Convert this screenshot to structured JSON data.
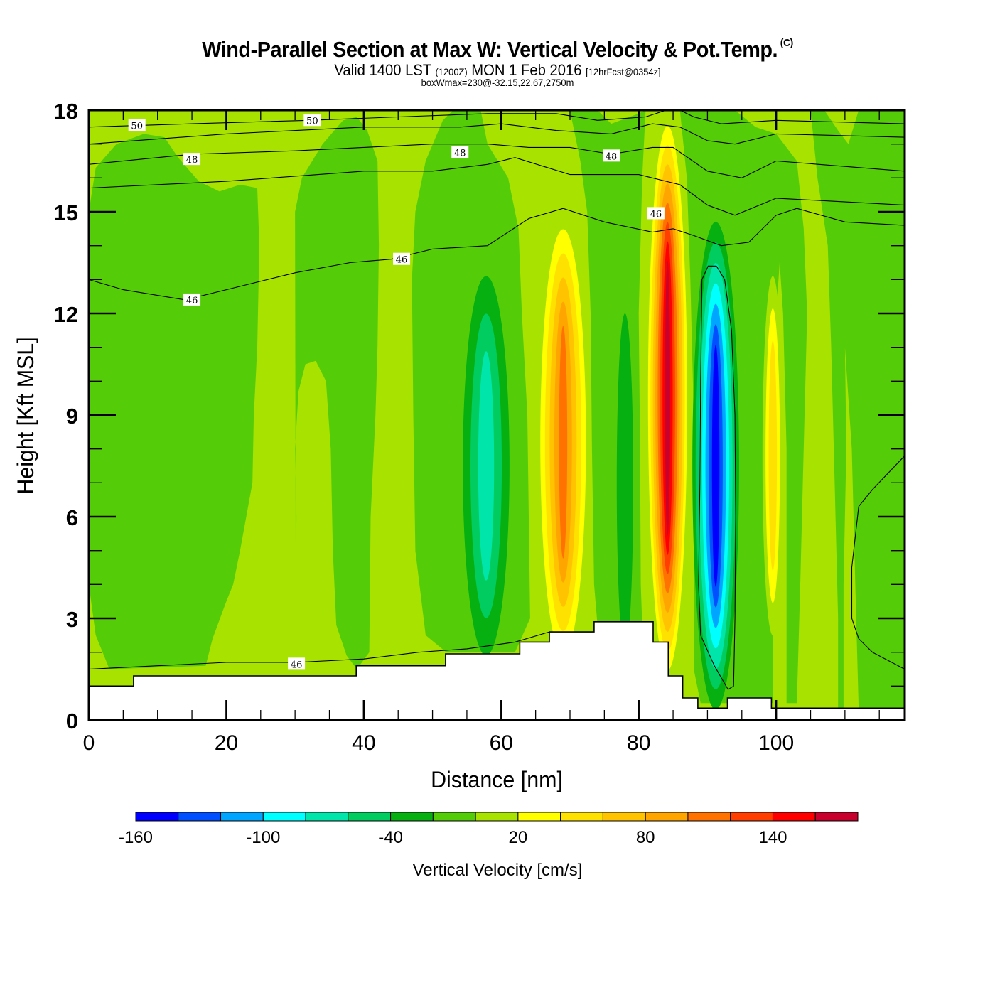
{
  "title": {
    "main": "Wind-Parallel Section at Max W: Vertical Velocity & Pot.Temp.",
    "copyright": "(C)",
    "valid_prefix": "Valid 1400 LST",
    "valid_utc": "(1200Z)",
    "valid_date": "MON 1 Feb 2016",
    "forecast": "[12hrFcst@0354z]",
    "box": "boxWmax=230@-32.15,22.67,2750m"
  },
  "chart_data": {
    "type": "heatmap",
    "subtype": "filled-contour cross-section with line contours",
    "xlabel": "Distance [nm]",
    "ylabel": "Height [Kft MSL]",
    "xlim": [
      0,
      118.7
    ],
    "ylim": [
      0,
      18
    ],
    "xticks": [
      0,
      20,
      40,
      60,
      80,
      100
    ],
    "xtick_labels": [
      "0",
      "20",
      "40",
      "60",
      "80",
      "100"
    ],
    "yticks": [
      0,
      3,
      6,
      9,
      12,
      15,
      18
    ],
    "ytick_labels": [
      "0",
      "3",
      "6",
      "9",
      "12",
      "15",
      "18"
    ],
    "colorbar": {
      "label": "Vertical Velocity [cm/s]",
      "levels": [
        -160,
        -140,
        -120,
        -100,
        -80,
        -60,
        -40,
        -20,
        0,
        20,
        40,
        60,
        80,
        100,
        120,
        140,
        160,
        180
      ],
      "tick_values": [
        -160,
        -100,
        -40,
        20,
        80,
        140
      ],
      "tick_labels": [
        "-160",
        "-100",
        "-40",
        "20",
        "80",
        "140"
      ],
      "colors": [
        "#0000ff",
        "#0050ff",
        "#00a5ff",
        "#00ffff",
        "#00e6aa",
        "#00cc5f",
        "#05b010",
        "#55cc08",
        "#a8e200",
        "#ffff00",
        "#ffe100",
        "#ffc300",
        "#ffa500",
        "#ff7200",
        "#ff3e00",
        "#ff0000",
        "#c8002d"
      ]
    },
    "background_level_color": "#55cc08",
    "w_features": [
      {
        "name": "updraft-weak-left",
        "x_center": 8,
        "x_halfwidth": 8,
        "y_range": [
          1.5,
          15
        ],
        "band_color": "#55cc08"
      },
      {
        "name": "downdraft-58",
        "x_center": 58,
        "y_center": 7,
        "peak_cmps": -60,
        "peak_color": "#00e6aa"
      },
      {
        "name": "updraft-69",
        "x_center": 69,
        "y_center": 8,
        "peak_cmps": 100,
        "peak_color": "#ff7200"
      },
      {
        "name": "downdraft-78",
        "x_center": 78,
        "y_center": 7,
        "peak_cmps": -20,
        "peak_color": "#05b010"
      },
      {
        "name": "updraft-84",
        "x_center": 84,
        "y_center": 10,
        "peak_cmps": 160,
        "peak_color": "#c8002d"
      },
      {
        "name": "downdraft-91",
        "x_center": 91,
        "y_center": 8.5,
        "peak_cmps": -160,
        "peak_color": "#0000ff"
      },
      {
        "name": "updraft-99",
        "x_center": 99,
        "y_center": 8,
        "peak_cmps": 40,
        "peak_color": "#ffe100"
      }
    ],
    "theta_contours": [
      {
        "value": 46,
        "label": "46",
        "points": [
          [
            0,
            1.5
          ],
          [
            10,
            1.6
          ],
          [
            20,
            1.7
          ],
          [
            30,
            1.7
          ],
          [
            40,
            1.8
          ],
          [
            48,
            2.0
          ],
          [
            55,
            2.1
          ],
          [
            62,
            2.3
          ],
          [
            67,
            2.6
          ]
        ]
      },
      {
        "value": 46,
        "label": "46",
        "points": [
          [
            0,
            13.0
          ],
          [
            5,
            12.7
          ],
          [
            14,
            12.4
          ],
          [
            22,
            12.8
          ],
          [
            30,
            13.2
          ],
          [
            38,
            13.5
          ],
          [
            44,
            13.6
          ],
          [
            50,
            13.9
          ],
          [
            58,
            14.0
          ],
          [
            64,
            14.8
          ],
          [
            69,
            15.1
          ],
          [
            75,
            14.7
          ],
          [
            82,
            14.4
          ],
          [
            85,
            14.5
          ],
          [
            88,
            14.3
          ],
          [
            92,
            14.0
          ],
          [
            96,
            14.1
          ],
          [
            100,
            14.9
          ],
          [
            103,
            15.1
          ],
          [
            110,
            14.7
          ],
          [
            118.7,
            14.6
          ]
        ]
      },
      {
        "value": 47,
        "label": "",
        "points": [
          [
            0,
            15.7
          ],
          [
            20,
            15.9
          ],
          [
            40,
            16.2
          ],
          [
            50,
            16.2
          ],
          [
            58,
            16.4
          ],
          [
            62,
            16.6
          ],
          [
            70,
            16.1
          ],
          [
            80,
            16.1
          ],
          [
            86,
            15.8
          ],
          [
            90,
            15.2
          ],
          [
            94,
            14.9
          ],
          [
            100,
            15.4
          ],
          [
            118.7,
            15.2
          ]
        ]
      },
      {
        "value": 48,
        "label": "48",
        "points": [
          [
            0,
            16.4
          ],
          [
            15,
            16.7
          ],
          [
            30,
            16.8
          ],
          [
            40,
            16.9
          ],
          [
            50,
            17.0
          ],
          [
            58,
            17.0
          ],
          [
            64,
            16.9
          ],
          [
            70,
            16.9
          ],
          [
            76,
            16.7
          ],
          [
            82,
            16.9
          ],
          [
            85,
            16.9
          ],
          [
            90,
            16.2
          ],
          [
            95,
            16.0
          ],
          [
            100,
            16.5
          ],
          [
            118.7,
            16.2
          ]
        ]
      },
      {
        "value": 49,
        "label": "",
        "points": [
          [
            0,
            17.0
          ],
          [
            20,
            17.3
          ],
          [
            40,
            17.5
          ],
          [
            54,
            17.5
          ],
          [
            60,
            17.6
          ],
          [
            68,
            17.4
          ],
          [
            76,
            17.3
          ],
          [
            82,
            17.6
          ],
          [
            86,
            17.5
          ],
          [
            90,
            17.1
          ],
          [
            94,
            17.0
          ],
          [
            100,
            17.3
          ],
          [
            118.7,
            17.2
          ]
        ]
      },
      {
        "value": 50,
        "label": "50",
        "points": [
          [
            0,
            17.5
          ],
          [
            15,
            17.6
          ],
          [
            32,
            17.7
          ],
          [
            45,
            17.8
          ],
          [
            58,
            17.9
          ],
          [
            68,
            17.9
          ],
          [
            74,
            17.7
          ],
          [
            81,
            17.8
          ],
          [
            84,
            18.0
          ]
        ]
      },
      {
        "value": 51,
        "label": "",
        "points": [
          [
            86,
            18.0
          ],
          [
            88,
            17.8
          ],
          [
            92,
            17.6
          ],
          [
            100,
            17.7
          ],
          [
            118.7,
            17.6
          ]
        ]
      },
      {
        "value": 45,
        "label": "",
        "points": [
          [
            91.3,
            13.4
          ],
          [
            92.5,
            13.0
          ],
          [
            93.5,
            11.5
          ],
          [
            94,
            9.0
          ],
          [
            94.1,
            6.0
          ],
          [
            94,
            3.0
          ],
          [
            93.8,
            1.0
          ],
          [
            93,
            0.9
          ],
          [
            91,
            1.6
          ],
          [
            89,
            2.5
          ],
          [
            88.7,
            4.0
          ],
          [
            88.9,
            7.0
          ],
          [
            89.0,
            10.0
          ],
          [
            89.2,
            13.0
          ],
          [
            90.1,
            13.4
          ],
          [
            91.3,
            13.4
          ]
        ]
      },
      {
        "value": 45,
        "label": "",
        "points": [
          [
            118.7,
            7.8
          ],
          [
            114,
            6.8
          ],
          [
            112,
            6.3
          ],
          [
            111,
            4.5
          ],
          [
            111,
            3.0
          ],
          [
            112,
            2.4
          ],
          [
            114,
            2.0
          ],
          [
            118.7,
            1.5
          ]
        ]
      }
    ],
    "contour_labels": [
      {
        "text": "50",
        "x": 7,
        "y": 17.55
      },
      {
        "text": "50",
        "x": 32.5,
        "y": 17.7
      },
      {
        "text": "48",
        "x": 15,
        "y": 16.55
      },
      {
        "text": "48",
        "x": 54,
        "y": 16.75
      },
      {
        "text": "48",
        "x": 76,
        "y": 16.65
      },
      {
        "text": "46",
        "x": 15,
        "y": 12.4
      },
      {
        "text": "46",
        "x": 45.5,
        "y": 13.6
      },
      {
        "text": "46",
        "x": 82.5,
        "y": 14.95
      },
      {
        "text": "46",
        "x": 30.2,
        "y": 1.65
      }
    ],
    "terrain": [
      [
        0,
        1.0
      ],
      [
        6.5,
        1.0
      ],
      [
        6.5,
        1.3
      ],
      [
        38.9,
        1.3
      ],
      [
        38.9,
        1.6
      ],
      [
        51.9,
        1.6
      ],
      [
        51.9,
        1.95
      ],
      [
        62.7,
        1.95
      ],
      [
        62.7,
        2.3
      ],
      [
        67.0,
        2.3
      ],
      [
        67.0,
        2.6
      ],
      [
        73.5,
        2.6
      ],
      [
        73.5,
        2.9
      ],
      [
        82.1,
        2.9
      ],
      [
        82.1,
        2.3
      ],
      [
        84.3,
        2.3
      ],
      [
        84.3,
        1.3
      ],
      [
        86.4,
        1.3
      ],
      [
        86.4,
        0.65
      ],
      [
        88.6,
        0.65
      ],
      [
        88.6,
        0.35
      ],
      [
        92.9,
        0.35
      ],
      [
        92.9,
        0.65
      ],
      [
        99.3,
        0.65
      ],
      [
        99.3,
        0.35
      ],
      [
        118.7,
        0.35
      ]
    ]
  }
}
